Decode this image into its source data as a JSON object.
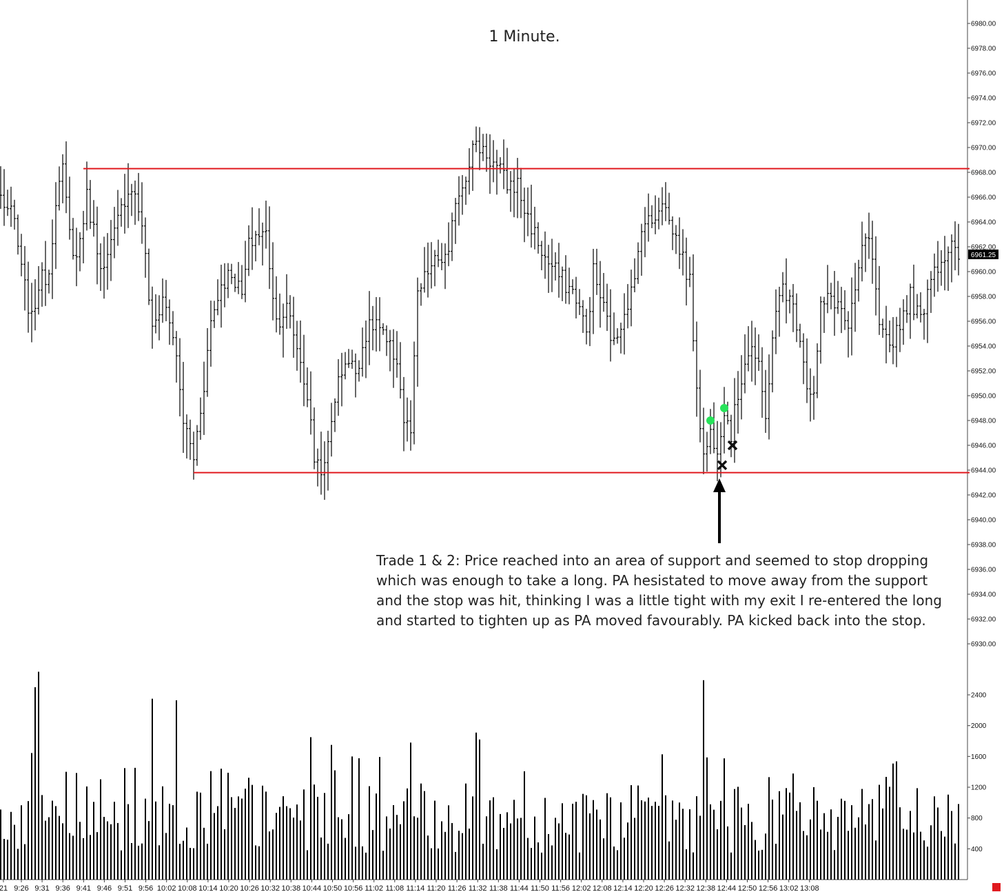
{
  "chart_data": [
    {
      "type": "ohlc",
      "title": "1 Minute.",
      "ylim": [
        6928,
        6982
      ],
      "y_ticks": [
        "6980.00",
        "6978.00",
        "6976.00",
        "6974.00",
        "6972.00",
        "6970.00",
        "6968.00",
        "6966.00",
        "6964.00",
        "6962.00",
        "6960.00",
        "6958.00",
        "6956.00",
        "6954.00",
        "6952.00",
        "6950.00",
        "6948.00",
        "6946.00",
        "6944.00",
        "6942.00",
        "6940.00",
        "6938.00",
        "6936.00",
        "6934.00",
        "6932.00",
        "6930.00"
      ],
      "last_price": "6961.25",
      "x_ticks": [
        "21",
        "9:26",
        "9:31",
        "9:36",
        "9:41",
        "9:46",
        "9:51",
        "9:56",
        "10:02",
        "10:08",
        "10:14",
        "10:20",
        "10:26",
        "10:32",
        "10:38",
        "10:44",
        "10:50",
        "10:56",
        "11:02",
        "11:08",
        "11:14",
        "11:20",
        "11:26",
        "11:32",
        "11:38",
        "11:44",
        "11:50",
        "11:56",
        "12:02",
        "12:08",
        "12:14",
        "12:20",
        "12:26",
        "12:32",
        "12:38",
        "12:44",
        "12:50",
        "12:56",
        "13:02",
        "13:08"
      ],
      "close_anchors": [
        [
          0,
          6966
        ],
        [
          4,
          6964
        ],
        [
          6,
          6960
        ],
        [
          9,
          6956
        ],
        [
          11,
          6959
        ],
        [
          14,
          6960
        ],
        [
          16,
          6966
        ],
        [
          18,
          6968
        ],
        [
          20,
          6963
        ],
        [
          22,
          6961
        ],
        [
          25,
          6966
        ],
        [
          28,
          6962
        ],
        [
          30,
          6960
        ],
        [
          33,
          6963
        ],
        [
          36,
          6966
        ],
        [
          38,
          6967
        ],
        [
          41,
          6964
        ],
        [
          44,
          6955
        ],
        [
          47,
          6958
        ],
        [
          50,
          6955
        ],
        [
          53,
          6948
        ],
        [
          56,
          6945
        ],
        [
          59,
          6951
        ],
        [
          61,
          6956
        ],
        [
          64,
          6959
        ],
        [
          67,
          6960
        ],
        [
          70,
          6958
        ],
        [
          72,
          6962
        ],
        [
          74,
          6963
        ],
        [
          77,
          6963
        ],
        [
          80,
          6956
        ],
        [
          83,
          6957
        ],
        [
          86,
          6954
        ],
        [
          89,
          6950
        ],
        [
          91,
          6945
        ],
        [
          94,
          6944
        ],
        [
          97,
          6950
        ],
        [
          100,
          6953
        ],
        [
          103,
          6952
        ],
        [
          106,
          6955
        ],
        [
          109,
          6956
        ],
        [
          112,
          6954
        ],
        [
          115,
          6953
        ],
        [
          117,
          6948
        ],
        [
          119,
          6947
        ],
        [
          121,
          6958
        ],
        [
          124,
          6960
        ],
        [
          127,
          6961
        ],
        [
          130,
          6961
        ],
        [
          132,
          6966
        ],
        [
          134,
          6967
        ],
        [
          137,
          6970
        ],
        [
          140,
          6970
        ],
        [
          142,
          6969
        ],
        [
          145,
          6968
        ],
        [
          147,
          6967
        ],
        [
          150,
          6967
        ],
        [
          152,
          6965
        ],
        [
          155,
          6963
        ],
        [
          158,
          6961
        ],
        [
          161,
          6960
        ],
        [
          164,
          6959
        ],
        [
          167,
          6958
        ],
        [
          170,
          6955
        ],
        [
          172,
          6960
        ],
        [
          175,
          6957
        ],
        [
          178,
          6954
        ],
        [
          181,
          6957
        ],
        [
          184,
          6959
        ],
        [
          186,
          6964
        ],
        [
          189,
          6964
        ],
        [
          192,
          6966
        ],
        [
          194,
          6964
        ],
        [
          197,
          6962
        ],
        [
          200,
          6959
        ],
        [
          202,
          6951
        ],
        [
          204,
          6945
        ],
        [
          206,
          6947
        ],
        [
          208,
          6946
        ],
        [
          210,
          6949
        ],
        [
          212,
          6947
        ],
        [
          214,
          6950
        ],
        [
          216,
          6953
        ],
        [
          218,
          6954
        ],
        [
          220,
          6952
        ],
        [
          222,
          6948
        ],
        [
          224,
          6955
        ],
        [
          227,
          6959
        ],
        [
          230,
          6957
        ],
        [
          232,
          6955
        ],
        [
          234,
          6951
        ],
        [
          236,
          6950
        ],
        [
          238,
          6957
        ],
        [
          241,
          6958
        ],
        [
          244,
          6957
        ],
        [
          246,
          6955
        ],
        [
          249,
          6960
        ],
        [
          251,
          6963
        ],
        [
          253,
          6961
        ],
        [
          255,
          6955
        ],
        [
          258,
          6954
        ],
        [
          261,
          6956
        ],
        [
          264,
          6958
        ],
        [
          267,
          6956
        ],
        [
          270,
          6960
        ],
        [
          273,
          6961
        ],
        [
          276,
          6962
        ],
        [
          278,
          6961
        ]
      ],
      "volume": {
        "ylim": [
          0,
          2900
        ],
        "y_ticks": [
          "2400",
          "2000",
          "1600",
          "1200",
          "800",
          "400"
        ],
        "spikes": [
          [
            10,
            2500
          ],
          [
            11,
            2700
          ],
          [
            44,
            2350
          ],
          [
            51,
            2330
          ],
          [
            204,
            2590
          ],
          [
            90,
            1850
          ],
          [
            138,
            1910
          ],
          [
            119,
            1780
          ],
          [
            96,
            1750
          ],
          [
            102,
            1600
          ],
          [
            139,
            1820
          ]
        ]
      },
      "reference_lines": [
        {
          "label": "resistance",
          "price": 6968.3,
          "color": "#e0191e",
          "from_bar": 24,
          "to_bar": 278
        },
        {
          "label": "support",
          "price": 6943.8,
          "color": "#e0191e",
          "from_bar": 56,
          "to_bar": 278
        }
      ],
      "markers": [
        {
          "type": "entry",
          "bar": 206,
          "price": 6948,
          "color": "#27e35a"
        },
        {
          "type": "entry",
          "bar": 210,
          "price": 6949,
          "color": "#27e35a"
        },
        {
          "type": "stop",
          "bar": 209,
          "price": 6944.4,
          "color": "#111111"
        },
        {
          "type": "stop",
          "bar": 212,
          "price": 6946,
          "color": "#111111"
        }
      ],
      "annotation": {
        "lines": [
          "Trade 1 & 2:  Price reached into an area of support and seemed to stop dropping",
          "which was enough to take a long.  PA hesistated to move away from the support",
          "and the stop was hit, thinking I was a little tight with my exit I re-entered the long",
          "and started to tighten up as PA moved favourably.  PA kicked back into the stop."
        ]
      }
    }
  ]
}
